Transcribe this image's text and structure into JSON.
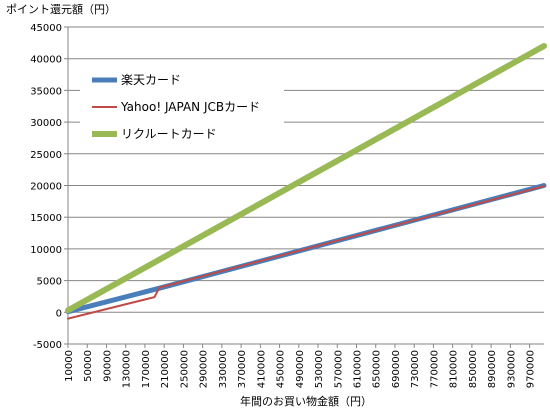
{
  "chart_data": {
    "type": "line",
    "ylabel": "ポイント還元額（円）",
    "xlabel": "年間のお買い物金額（円）",
    "ylim": [
      -5000,
      45000
    ],
    "yticks": [
      -5000,
      0,
      5000,
      10000,
      15000,
      20000,
      25000,
      30000,
      35000,
      40000,
      45000
    ],
    "xlim": [
      10000,
      1000000
    ],
    "xticks": [
      10000,
      50000,
      90000,
      130000,
      170000,
      210000,
      250000,
      290000,
      330000,
      370000,
      410000,
      450000,
      490000,
      530000,
      570000,
      610000,
      650000,
      690000,
      730000,
      770000,
      810000,
      850000,
      890000,
      930000,
      970000
    ],
    "grid": true,
    "legend": "upper-left",
    "series": [
      {
        "name": "楽天カード",
        "color": "#4a7ebb",
        "x": [
          10000,
          200000,
          1000000
        ],
        "values": [
          100,
          3800,
          20000
        ]
      },
      {
        "name": "Yahoo! JAPAN JCBカード",
        "color": "#be4b48",
        "x": [
          10000,
          190000,
          200000,
          1000000
        ],
        "values": [
          -1000,
          2400,
          3900,
          19900
        ]
      },
      {
        "name": "リクルートカード",
        "color": "#98b954",
        "x": [
          10000,
          1000000
        ],
        "values": [
          300,
          42000
        ]
      }
    ]
  }
}
